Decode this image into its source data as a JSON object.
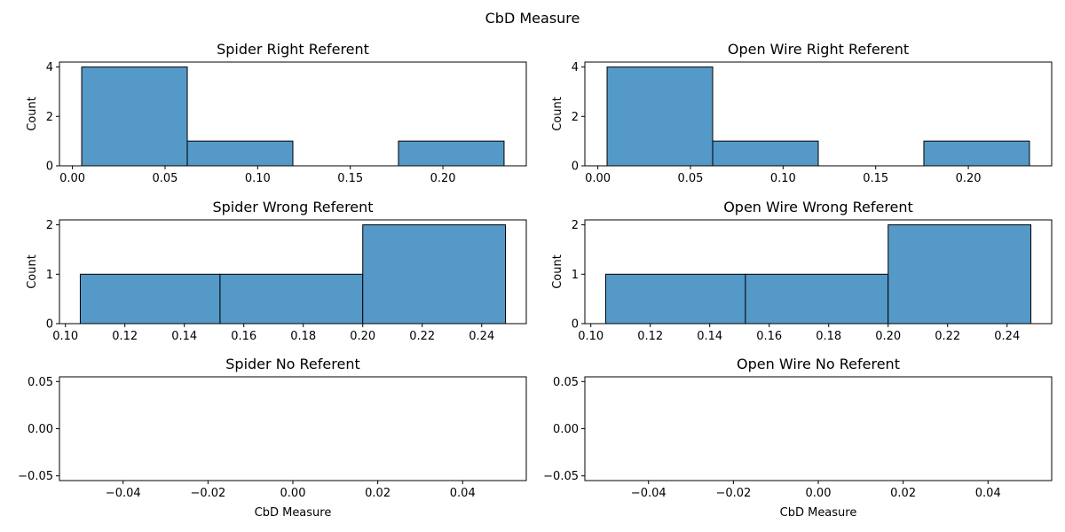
{
  "figure": {
    "suptitle": "CbD Measure"
  },
  "colors": {
    "bar_fill": "#5599c8",
    "bar_edge": "#000000",
    "axes": "#000000"
  },
  "chart_data": [
    {
      "type": "bar",
      "title": "Spider Right Referent",
      "xlabel": "",
      "ylabel": "Count",
      "bins": [
        [
          0.005,
          0.062
        ],
        [
          0.062,
          0.119
        ],
        [
          0.119,
          0.176
        ],
        [
          0.176,
          0.233
        ]
      ],
      "values": [
        4,
        1,
        0,
        1
      ],
      "xlim": [
        -0.007,
        0.245
      ],
      "ylim": [
        0,
        4.2
      ],
      "xticks": [
        0.0,
        0.05,
        0.1,
        0.15,
        0.2
      ],
      "xticklabels": [
        "0.00",
        "0.05",
        "0.10",
        "0.15",
        "0.20"
      ],
      "yticks": [
        0,
        2,
        4
      ],
      "yticklabels": [
        "0",
        "2",
        "4"
      ]
    },
    {
      "type": "bar",
      "title": "Open Wire Right Referent",
      "xlabel": "",
      "ylabel": "Count",
      "bins": [
        [
          0.005,
          0.062
        ],
        [
          0.062,
          0.119
        ],
        [
          0.119,
          0.176
        ],
        [
          0.176,
          0.233
        ]
      ],
      "values": [
        4,
        1,
        0,
        1
      ],
      "xlim": [
        -0.007,
        0.245
      ],
      "ylim": [
        0,
        4.2
      ],
      "xticks": [
        0.0,
        0.05,
        0.1,
        0.15,
        0.2
      ],
      "xticklabels": [
        "0.00",
        "0.05",
        "0.10",
        "0.15",
        "0.20"
      ],
      "yticks": [
        0,
        2,
        4
      ],
      "yticklabels": [
        "0",
        "2",
        "4"
      ]
    },
    {
      "type": "bar",
      "title": "Spider Wrong Referent",
      "xlabel": "",
      "ylabel": "Count",
      "bins": [
        [
          0.105,
          0.152
        ],
        [
          0.152,
          0.2
        ],
        [
          0.2,
          0.248
        ]
      ],
      "values": [
        1,
        1,
        2
      ],
      "xlim": [
        0.098,
        0.255
      ],
      "ylim": [
        0,
        2.1
      ],
      "xticks": [
        0.1,
        0.12,
        0.14,
        0.16,
        0.18,
        0.2,
        0.22,
        0.24
      ],
      "xticklabels": [
        "0.10",
        "0.12",
        "0.14",
        "0.16",
        "0.18",
        "0.20",
        "0.22",
        "0.24"
      ],
      "yticks": [
        0,
        1,
        2
      ],
      "yticklabels": [
        "0",
        "1",
        "2"
      ]
    },
    {
      "type": "bar",
      "title": "Open Wire Wrong Referent",
      "xlabel": "",
      "ylabel": "Count",
      "bins": [
        [
          0.105,
          0.152
        ],
        [
          0.152,
          0.2
        ],
        [
          0.2,
          0.248
        ]
      ],
      "values": [
        1,
        1,
        2
      ],
      "xlim": [
        0.098,
        0.255
      ],
      "ylim": [
        0,
        2.1
      ],
      "xticks": [
        0.1,
        0.12,
        0.14,
        0.16,
        0.18,
        0.2,
        0.22,
        0.24
      ],
      "xticklabels": [
        "0.10",
        "0.12",
        "0.14",
        "0.16",
        "0.18",
        "0.20",
        "0.22",
        "0.24"
      ],
      "yticks": [
        0,
        1,
        2
      ],
      "yticklabels": [
        "0",
        "1",
        "2"
      ]
    },
    {
      "type": "bar",
      "title": "Spider No Referent",
      "xlabel": "CbD Measure",
      "ylabel": "",
      "bins": [],
      "values": [],
      "xlim": [
        -0.055,
        0.055
      ],
      "ylim": [
        -0.055,
        0.055
      ],
      "xticks": [
        -0.04,
        -0.02,
        0.0,
        0.02,
        0.04
      ],
      "xticklabels": [
        "−0.04",
        "−0.02",
        "0.00",
        "0.02",
        "0.04"
      ],
      "yticks": [
        -0.05,
        0.0,
        0.05
      ],
      "yticklabels": [
        "−0.05",
        "0.00",
        "0.05"
      ]
    },
    {
      "type": "bar",
      "title": "Open Wire No Referent",
      "xlabel": "CbD Measure",
      "ylabel": "",
      "bins": [],
      "values": [],
      "xlim": [
        -0.055,
        0.055
      ],
      "ylim": [
        -0.055,
        0.055
      ],
      "xticks": [
        -0.04,
        -0.02,
        0.0,
        0.02,
        0.04
      ],
      "xticklabels": [
        "−0.04",
        "−0.02",
        "0.00",
        "0.02",
        "0.04"
      ],
      "yticks": [
        -0.05,
        0.0,
        0.05
      ],
      "yticklabels": [
        "−0.05",
        "0.00",
        "0.05"
      ]
    }
  ]
}
